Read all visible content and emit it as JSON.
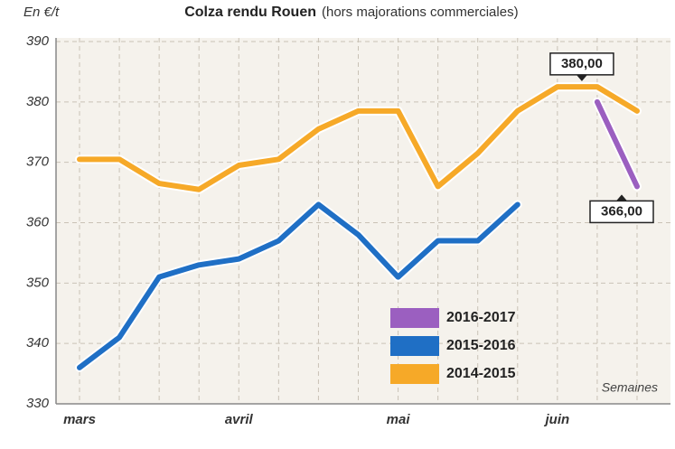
{
  "chart_data": {
    "type": "line",
    "title": "Colza rendu Rouen",
    "subtitle": "(hors majorations commerciales)",
    "y_label": "En €/t",
    "x_label": "Semaines",
    "categories": [
      "mars",
      null,
      null,
      null,
      "avril",
      null,
      null,
      null,
      "mai",
      null,
      null,
      null,
      "juin",
      null,
      null
    ],
    "series": [
      {
        "name": "2016-2017",
        "color": "#9b5fc0",
        "values": [
          null,
          null,
          null,
          null,
          null,
          null,
          null,
          null,
          null,
          null,
          null,
          null,
          null,
          380,
          366
        ],
        "value_labels": [
          null,
          null,
          null,
          null,
          null,
          null,
          null,
          null,
          null,
          null,
          null,
          null,
          null,
          "380,00",
          "366,00"
        ]
      },
      {
        "name": "2015-2016",
        "color": "#1f6fc5",
        "values": [
          336,
          341,
          351,
          353,
          354,
          357,
          363,
          358,
          351,
          357,
          357,
          363,
          null,
          null,
          null
        ]
      },
      {
        "name": "2014-2015",
        "color": "#f6a928",
        "values": [
          370.5,
          370.5,
          366.5,
          365.5,
          369.5,
          370.5,
          375.5,
          378.5,
          378.5,
          366,
          371.5,
          378.5,
          382.5,
          382.5,
          378.5
        ]
      }
    ],
    "ylim": [
      330,
      390
    ],
    "yticks": [
      330,
      340,
      350,
      360,
      370,
      380,
      390
    ],
    "grid": true
  }
}
